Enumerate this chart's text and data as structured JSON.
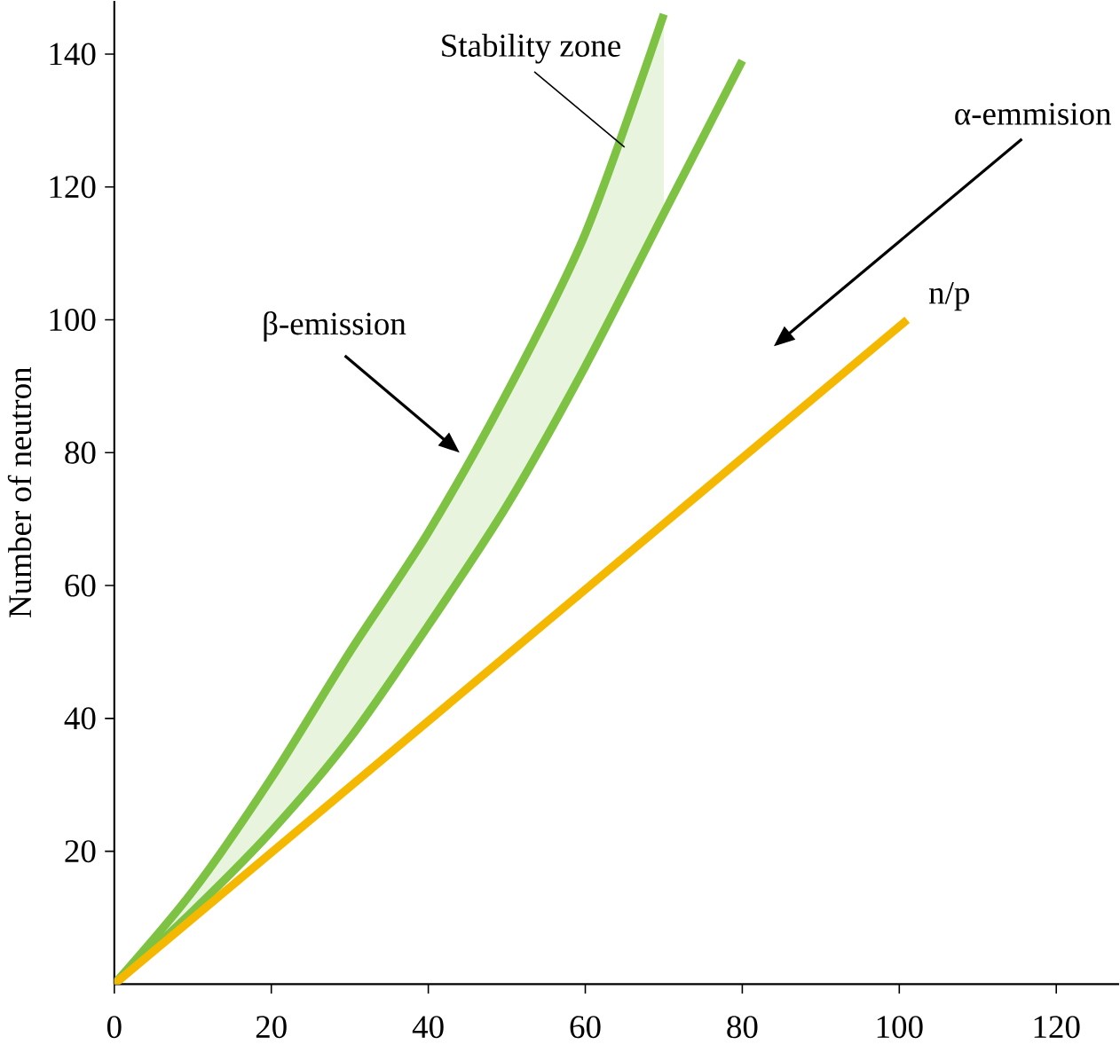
{
  "chart_data": {
    "type": "line",
    "ylabel": "Number  of neutron",
    "xlim": [
      0,
      128
    ],
    "ylim": [
      0,
      148
    ],
    "xticks": [
      0,
      20,
      40,
      60,
      80,
      100,
      120
    ],
    "yticks": [
      20,
      40,
      60,
      80,
      100,
      120,
      140
    ],
    "series": [
      {
        "color": "#7dc242",
        "x": [
          0,
          10,
          20,
          30,
          40,
          50,
          60,
          70
        ],
        "values": [
          0,
          14,
          31,
          50,
          68,
          89,
          113,
          146
        ],
        "lower": [
          0,
          11,
          23,
          37,
          54,
          72,
          93,
          116
        ],
        "upper": [
          0,
          14,
          31,
          50,
          68,
          89,
          113,
          146
        ]
      },
      {
        "color": "#7dc242",
        "x": [
          0,
          10,
          20,
          30,
          40,
          50,
          60,
          70,
          80
        ],
        "values": [
          0,
          11,
          23,
          37,
          54,
          72,
          93,
          116,
          139
        ]
      },
      {
        "color": "#f5b800",
        "x": [
          0,
          101
        ],
        "values": [
          0,
          100
        ]
      }
    ],
    "annotations": [
      {
        "text": "Stability zone",
        "x": 65,
        "y": 126
      },
      "β-emission",
      "α-emmision",
      {
        "text": "n/p",
        "x": 101,
        "y": 100
      }
    ]
  }
}
